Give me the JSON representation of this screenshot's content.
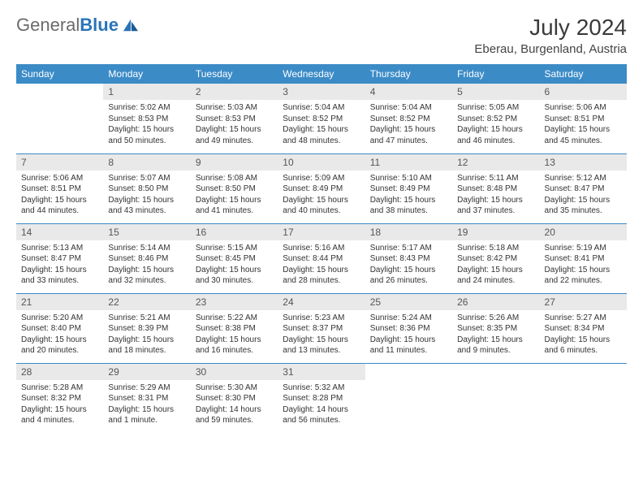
{
  "brand": {
    "part1": "General",
    "part2": "Blue"
  },
  "title": "July 2024",
  "location": "Eberau, Burgenland, Austria",
  "colors": {
    "header_bg": "#3b8bc7",
    "header_text": "#ffffff",
    "daynum_bg": "#e9e9e9",
    "border": "#3b8bc7",
    "logo_gray": "#6b6b6b",
    "logo_blue": "#2a74b8"
  },
  "weekdays": [
    "Sunday",
    "Monday",
    "Tuesday",
    "Wednesday",
    "Thursday",
    "Friday",
    "Saturday"
  ],
  "weeks": [
    [
      {
        "day": "",
        "sunrise": "",
        "sunset": "",
        "daylight": ""
      },
      {
        "day": "1",
        "sunrise": "Sunrise: 5:02 AM",
        "sunset": "Sunset: 8:53 PM",
        "daylight": "Daylight: 15 hours and 50 minutes."
      },
      {
        "day": "2",
        "sunrise": "Sunrise: 5:03 AM",
        "sunset": "Sunset: 8:53 PM",
        "daylight": "Daylight: 15 hours and 49 minutes."
      },
      {
        "day": "3",
        "sunrise": "Sunrise: 5:04 AM",
        "sunset": "Sunset: 8:52 PM",
        "daylight": "Daylight: 15 hours and 48 minutes."
      },
      {
        "day": "4",
        "sunrise": "Sunrise: 5:04 AM",
        "sunset": "Sunset: 8:52 PM",
        "daylight": "Daylight: 15 hours and 47 minutes."
      },
      {
        "day": "5",
        "sunrise": "Sunrise: 5:05 AM",
        "sunset": "Sunset: 8:52 PM",
        "daylight": "Daylight: 15 hours and 46 minutes."
      },
      {
        "day": "6",
        "sunrise": "Sunrise: 5:06 AM",
        "sunset": "Sunset: 8:51 PM",
        "daylight": "Daylight: 15 hours and 45 minutes."
      }
    ],
    [
      {
        "day": "7",
        "sunrise": "Sunrise: 5:06 AM",
        "sunset": "Sunset: 8:51 PM",
        "daylight": "Daylight: 15 hours and 44 minutes."
      },
      {
        "day": "8",
        "sunrise": "Sunrise: 5:07 AM",
        "sunset": "Sunset: 8:50 PM",
        "daylight": "Daylight: 15 hours and 43 minutes."
      },
      {
        "day": "9",
        "sunrise": "Sunrise: 5:08 AM",
        "sunset": "Sunset: 8:50 PM",
        "daylight": "Daylight: 15 hours and 41 minutes."
      },
      {
        "day": "10",
        "sunrise": "Sunrise: 5:09 AM",
        "sunset": "Sunset: 8:49 PM",
        "daylight": "Daylight: 15 hours and 40 minutes."
      },
      {
        "day": "11",
        "sunrise": "Sunrise: 5:10 AM",
        "sunset": "Sunset: 8:49 PM",
        "daylight": "Daylight: 15 hours and 38 minutes."
      },
      {
        "day": "12",
        "sunrise": "Sunrise: 5:11 AM",
        "sunset": "Sunset: 8:48 PM",
        "daylight": "Daylight: 15 hours and 37 minutes."
      },
      {
        "day": "13",
        "sunrise": "Sunrise: 5:12 AM",
        "sunset": "Sunset: 8:47 PM",
        "daylight": "Daylight: 15 hours and 35 minutes."
      }
    ],
    [
      {
        "day": "14",
        "sunrise": "Sunrise: 5:13 AM",
        "sunset": "Sunset: 8:47 PM",
        "daylight": "Daylight: 15 hours and 33 minutes."
      },
      {
        "day": "15",
        "sunrise": "Sunrise: 5:14 AM",
        "sunset": "Sunset: 8:46 PM",
        "daylight": "Daylight: 15 hours and 32 minutes."
      },
      {
        "day": "16",
        "sunrise": "Sunrise: 5:15 AM",
        "sunset": "Sunset: 8:45 PM",
        "daylight": "Daylight: 15 hours and 30 minutes."
      },
      {
        "day": "17",
        "sunrise": "Sunrise: 5:16 AM",
        "sunset": "Sunset: 8:44 PM",
        "daylight": "Daylight: 15 hours and 28 minutes."
      },
      {
        "day": "18",
        "sunrise": "Sunrise: 5:17 AM",
        "sunset": "Sunset: 8:43 PM",
        "daylight": "Daylight: 15 hours and 26 minutes."
      },
      {
        "day": "19",
        "sunrise": "Sunrise: 5:18 AM",
        "sunset": "Sunset: 8:42 PM",
        "daylight": "Daylight: 15 hours and 24 minutes."
      },
      {
        "day": "20",
        "sunrise": "Sunrise: 5:19 AM",
        "sunset": "Sunset: 8:41 PM",
        "daylight": "Daylight: 15 hours and 22 minutes."
      }
    ],
    [
      {
        "day": "21",
        "sunrise": "Sunrise: 5:20 AM",
        "sunset": "Sunset: 8:40 PM",
        "daylight": "Daylight: 15 hours and 20 minutes."
      },
      {
        "day": "22",
        "sunrise": "Sunrise: 5:21 AM",
        "sunset": "Sunset: 8:39 PM",
        "daylight": "Daylight: 15 hours and 18 minutes."
      },
      {
        "day": "23",
        "sunrise": "Sunrise: 5:22 AM",
        "sunset": "Sunset: 8:38 PM",
        "daylight": "Daylight: 15 hours and 16 minutes."
      },
      {
        "day": "24",
        "sunrise": "Sunrise: 5:23 AM",
        "sunset": "Sunset: 8:37 PM",
        "daylight": "Daylight: 15 hours and 13 minutes."
      },
      {
        "day": "25",
        "sunrise": "Sunrise: 5:24 AM",
        "sunset": "Sunset: 8:36 PM",
        "daylight": "Daylight: 15 hours and 11 minutes."
      },
      {
        "day": "26",
        "sunrise": "Sunrise: 5:26 AM",
        "sunset": "Sunset: 8:35 PM",
        "daylight": "Daylight: 15 hours and 9 minutes."
      },
      {
        "day": "27",
        "sunrise": "Sunrise: 5:27 AM",
        "sunset": "Sunset: 8:34 PM",
        "daylight": "Daylight: 15 hours and 6 minutes."
      }
    ],
    [
      {
        "day": "28",
        "sunrise": "Sunrise: 5:28 AM",
        "sunset": "Sunset: 8:32 PM",
        "daylight": "Daylight: 15 hours and 4 minutes."
      },
      {
        "day": "29",
        "sunrise": "Sunrise: 5:29 AM",
        "sunset": "Sunset: 8:31 PM",
        "daylight": "Daylight: 15 hours and 1 minute."
      },
      {
        "day": "30",
        "sunrise": "Sunrise: 5:30 AM",
        "sunset": "Sunset: 8:30 PM",
        "daylight": "Daylight: 14 hours and 59 minutes."
      },
      {
        "day": "31",
        "sunrise": "Sunrise: 5:32 AM",
        "sunset": "Sunset: 8:28 PM",
        "daylight": "Daylight: 14 hours and 56 minutes."
      },
      {
        "day": "",
        "sunrise": "",
        "sunset": "",
        "daylight": ""
      },
      {
        "day": "",
        "sunrise": "",
        "sunset": "",
        "daylight": ""
      },
      {
        "day": "",
        "sunrise": "",
        "sunset": "",
        "daylight": ""
      }
    ]
  ]
}
